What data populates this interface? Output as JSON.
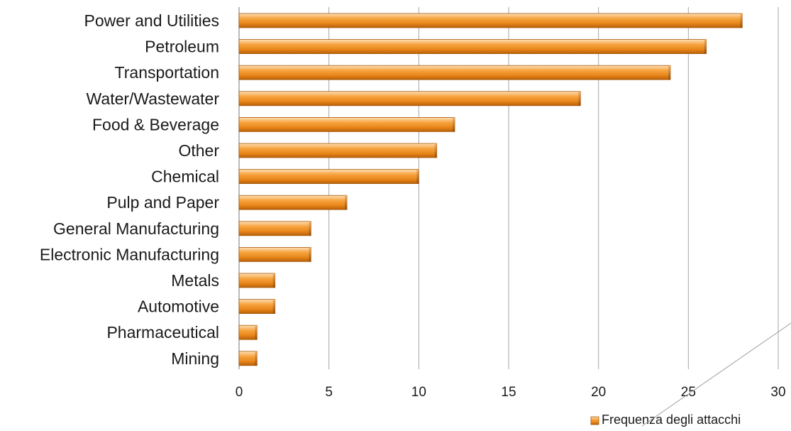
{
  "chart_data": {
    "type": "bar",
    "orientation": "horizontal",
    "categories": [
      "Power and Utilities",
      "Petroleum",
      "Transportation",
      "Water/Wastewater",
      "Food & Beverage",
      "Other",
      "Chemical",
      "Pulp and Paper",
      "General Manufacturing",
      "Electronic Manufacturing",
      "Metals",
      "Automotive",
      "Pharmaceutical",
      "Mining"
    ],
    "series": [
      {
        "name": "Frequenza degli attacchi",
        "values": [
          28,
          26,
          24,
          19,
          12,
          11,
          10,
          6,
          4,
          4,
          2,
          2,
          1,
          1
        ],
        "color": "#f0901e"
      }
    ],
    "xlim": [
      0,
      30
    ],
    "xticks": [
      0,
      5,
      10,
      15,
      20,
      25,
      30
    ],
    "grid": true,
    "legend": "bottom-right"
  }
}
